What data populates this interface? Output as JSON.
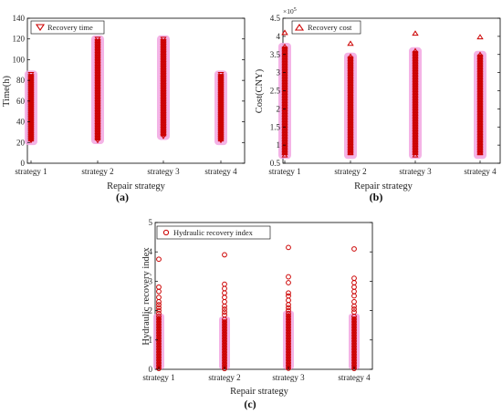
{
  "chart_data": [
    {
      "type": "scatter",
      "panel": "(a)",
      "xlabel": "Repair strategy",
      "ylabel": "Time(h)",
      "categories": [
        "strategy 1",
        "strategy 2",
        "strategy 3",
        "strategy 4"
      ],
      "ylim": [
        0,
        140
      ],
      "yticks": [
        0,
        20,
        40,
        60,
        80,
        100,
        120,
        140
      ],
      "marker": "down-triangle",
      "color": "#cc0000",
      "halo_color": "#f2a6e2",
      "legend": {
        "label": "Recovery time",
        "position": "top-left"
      },
      "series": [
        {
          "category": "strategy 1",
          "min": 21,
          "max": 86
        },
        {
          "category": "strategy 2",
          "min": 22,
          "max": 120
        },
        {
          "category": "strategy 3",
          "min": 26,
          "max": 120
        },
        {
          "category": "strategy 4",
          "min": 21,
          "max": 86
        }
      ]
    },
    {
      "type": "scatter",
      "panel": "(b)",
      "xlabel": "Repair strategy",
      "ylabel": "Cost(CNY)",
      "exponent_label": "×10",
      "exponent_power": "5",
      "categories": [
        "strategy 1",
        "strategy 2",
        "strategy 3",
        "strategy 4"
      ],
      "ylim": [
        0.5,
        4.5
      ],
      "yticks": [
        0.5,
        1,
        1.5,
        2,
        2.5,
        3,
        3.5,
        4,
        4.5
      ],
      "marker": "up-triangle",
      "color": "#cc0000",
      "halo_color": "#f2a6e2",
      "legend": {
        "label": "Recovery cost",
        "position": "top-left"
      },
      "series": [
        {
          "category": "strategy 1",
          "min": 0.72,
          "max": 3.72,
          "outliers": [
            4.1
          ]
        },
        {
          "category": "strategy 2",
          "min": 0.72,
          "max": 3.45,
          "outliers": [
            3.8
          ]
        },
        {
          "category": "strategy 3",
          "min": 0.72,
          "max": 3.6,
          "outliers": [
            4.08
          ]
        },
        {
          "category": "strategy 4",
          "min": 0.72,
          "max": 3.5,
          "outliers": [
            3.98
          ]
        }
      ]
    },
    {
      "type": "scatter",
      "panel": "(c)",
      "xlabel": "Repair strategy",
      "ylabel": "Hydraulic recovery index",
      "categories": [
        "strategy 1",
        "strategy 2",
        "strategy 3",
        "strategy 4"
      ],
      "ylim": [
        0,
        5
      ],
      "yticks": [
        0,
        1,
        2,
        3,
        4,
        5
      ],
      "marker": "circle",
      "color": "#cc0000",
      "halo_color": "#f2a6e2",
      "legend": {
        "label": "Hydraulic recovery index",
        "position": "top-left"
      },
      "series": [
        {
          "category": "strategy 1",
          "dense_max": 1.8,
          "points": [
            3.75,
            2.8,
            2.65,
            2.45,
            2.3,
            2.2,
            2.1,
            2.0,
            1.9
          ]
        },
        {
          "category": "strategy 2",
          "dense_max": 1.7,
          "points": [
            3.9,
            2.9,
            2.75,
            2.6,
            2.45,
            2.3,
            2.15,
            2.05,
            1.95,
            1.85
          ]
        },
        {
          "category": "strategy 3",
          "dense_max": 1.9,
          "points": [
            4.15,
            3.15,
            2.95,
            2.6,
            2.5,
            2.35,
            2.2,
            2.1,
            2.0
          ]
        },
        {
          "category": "strategy 4",
          "dense_max": 1.8,
          "points": [
            4.1,
            3.1,
            2.95,
            2.8,
            2.65,
            2.5,
            2.3,
            2.15,
            2.05,
            1.95
          ]
        }
      ]
    }
  ]
}
